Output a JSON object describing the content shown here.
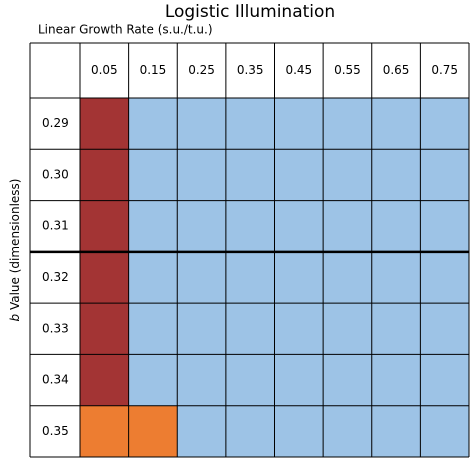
{
  "title": "Logistic Illumination",
  "column_axis_label": "Linear Growth  Rate (s.u./t.u.)",
  "row_axis_label": {
    "italic": "b",
    "rest": "Value (dimensionless)"
  },
  "columns": [
    "0.05",
    "0.15",
    "0.25",
    "0.35",
    "0.45",
    "0.55",
    "0.65",
    "0.75"
  ],
  "rows": [
    "0.29",
    "0.30",
    "0.31",
    "0.32",
    "0.33",
    "0.34",
    "0.35"
  ],
  "cell_colors": [
    [
      "#a33434",
      "#9dc3e6",
      "#9dc3e6",
      "#9dc3e6",
      "#9dc3e6",
      "#9dc3e6",
      "#9dc3e6",
      "#9dc3e6"
    ],
    [
      "#a33434",
      "#9dc3e6",
      "#9dc3e6",
      "#9dc3e6",
      "#9dc3e6",
      "#9dc3e6",
      "#9dc3e6",
      "#9dc3e6"
    ],
    [
      "#a33434",
      "#9dc3e6",
      "#9dc3e6",
      "#9dc3e6",
      "#9dc3e6",
      "#9dc3e6",
      "#9dc3e6",
      "#9dc3e6"
    ],
    [
      "#a33434",
      "#9dc3e6",
      "#9dc3e6",
      "#9dc3e6",
      "#9dc3e6",
      "#9dc3e6",
      "#9dc3e6",
      "#9dc3e6"
    ],
    [
      "#a33434",
      "#9dc3e6",
      "#9dc3e6",
      "#9dc3e6",
      "#9dc3e6",
      "#9dc3e6",
      "#9dc3e6",
      "#9dc3e6"
    ],
    [
      "#a33434",
      "#9dc3e6",
      "#9dc3e6",
      "#9dc3e6",
      "#9dc3e6",
      "#9dc3e6",
      "#9dc3e6",
      "#9dc3e6"
    ],
    [
      "#ed7d31",
      "#ed7d31",
      "#9dc3e6",
      "#9dc3e6",
      "#9dc3e6",
      "#9dc3e6",
      "#9dc3e6",
      "#9dc3e6"
    ]
  ]
}
